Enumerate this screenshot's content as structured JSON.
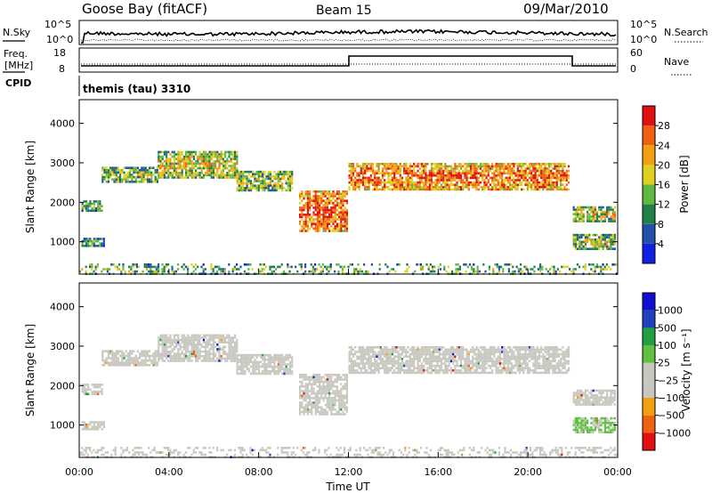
{
  "header": {
    "station": "Goose Bay (fitACF)",
    "beam": "Beam 15",
    "date": "09/Mar/2010"
  },
  "noise_panel": {
    "left_label": "N.Sky",
    "right_label": "N.Search",
    "left_ticks": [
      "10^5",
      "10^0"
    ],
    "right_ticks": [
      "10^5",
      "10^0"
    ]
  },
  "freq_panel": {
    "left_label_1": "Freq.",
    "left_label_2": "[MHz]",
    "cpid_label": "CPID",
    "right_label": "Nave",
    "left_ticks": [
      "18",
      "8"
    ],
    "right_ticks": [
      "60",
      "0"
    ]
  },
  "cpid_text": "themis (tau) 3310",
  "colors": {
    "power_scale": [
      "#1020e0",
      "#2050a8",
      "#208048",
      "#60b840",
      "#e0d020",
      "#f0a010",
      "#f06010",
      "#e01010"
    ],
    "velocity_scale": [
      "#e01010",
      "#f06010",
      "#f0a010",
      "#c8c8c0",
      "#c8c8c0",
      "#60c040",
      "#20a040",
      "#2040c0",
      "#1010d0"
    ],
    "ground_scatter": "#c8c8c0"
  },
  "chart_data": [
    {
      "type": "heatmap",
      "name": "power",
      "ylabel": "Slant Range [km]",
      "yticks": [
        "1000",
        "2000",
        "3000",
        "4000"
      ],
      "ylim": [
        180,
        4600
      ],
      "xlim": [
        0,
        24
      ],
      "colorbar_label": "Power [dB]",
      "colorbar_ticks": [
        "4",
        "8",
        "12",
        "16",
        "20",
        "24",
        "28"
      ],
      "colorbar_range": [
        0,
        32
      ],
      "regions": [
        {
          "t0": 0.1,
          "t1": 1.0,
          "r0": 1800,
          "r1": 2050,
          "level": 0.25
        },
        {
          "t0": 0.1,
          "t1": 1.1,
          "r0": 900,
          "r1": 1100,
          "level": 0.3
        },
        {
          "t0": 1.0,
          "t1": 3.5,
          "r0": 2500,
          "r1": 2900,
          "level": 0.35
        },
        {
          "t0": 3.5,
          "t1": 7.0,
          "r0": 2600,
          "r1": 3300,
          "level": 0.45
        },
        {
          "t0": 7.0,
          "t1": 9.5,
          "r0": 2300,
          "r1": 2800,
          "level": 0.35
        },
        {
          "t0": 9.8,
          "t1": 11.9,
          "r0": 1300,
          "r1": 2300,
          "level": 0.7
        },
        {
          "t0": 12.0,
          "t1": 21.8,
          "r0": 2300,
          "r1": 3000,
          "level": 0.65
        },
        {
          "t0": 22.0,
          "t1": 23.9,
          "r0": 1500,
          "r1": 1900,
          "level": 0.4
        },
        {
          "t0": 22.0,
          "t1": 23.9,
          "r0": 800,
          "r1": 1200,
          "level": 0.35
        },
        {
          "t0": 0.0,
          "t1": 24.0,
          "r0": 200,
          "r1": 450,
          "level": 0.3
        }
      ]
    },
    {
      "type": "heatmap",
      "name": "velocity",
      "ylabel": "Slant Range [km]",
      "yticks": [
        "1000",
        "2000",
        "3000",
        "4000"
      ],
      "ylim": [
        180,
        4600
      ],
      "xlim": [
        0,
        24
      ],
      "xticks": [
        "00:00",
        "04:00",
        "08:00",
        "12:00",
        "16:00",
        "20:00",
        "00:00"
      ],
      "xlabel": "Time UT",
      "colorbar_label": "Velocity [m s⁻¹]",
      "colorbar_ticks": [
        "1000",
        "500",
        "100",
        "25",
        "−25",
        "−100",
        "−500",
        "−1000"
      ],
      "regions": [
        {
          "t0": 0.1,
          "t1": 1.0,
          "r0": 1800,
          "r1": 2050,
          "velocity": 0
        },
        {
          "t0": 0.1,
          "t1": 1.1,
          "r0": 900,
          "r1": 1100,
          "velocity": 0
        },
        {
          "t0": 1.0,
          "t1": 3.5,
          "r0": 2500,
          "r1": 2900,
          "velocity": 0
        },
        {
          "t0": 3.5,
          "t1": 7.0,
          "r0": 2600,
          "r1": 3300,
          "velocity": 0
        },
        {
          "t0": 7.0,
          "t1": 9.5,
          "r0": 2300,
          "r1": 2800,
          "velocity": 0
        },
        {
          "t0": 9.8,
          "t1": 11.9,
          "r0": 1300,
          "r1": 2300,
          "velocity": 0
        },
        {
          "t0": 12.0,
          "t1": 21.8,
          "r0": 2300,
          "r1": 3000,
          "velocity": 0
        },
        {
          "t0": 22.0,
          "t1": 23.9,
          "r0": 1500,
          "r1": 1900,
          "velocity": 0
        },
        {
          "t0": 22.0,
          "t1": 23.9,
          "r0": 800,
          "r1": 1200,
          "velocity": 150
        },
        {
          "t0": 0.0,
          "t1": 24.0,
          "r0": 200,
          "r1": 450,
          "velocity": 0
        }
      ]
    }
  ]
}
